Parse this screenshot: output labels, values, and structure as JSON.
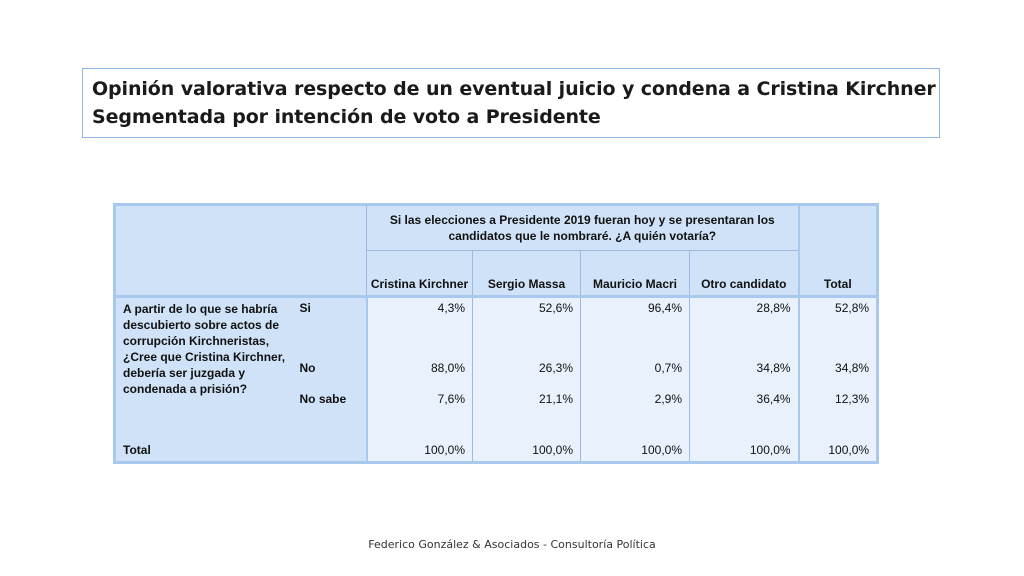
{
  "title": {
    "line1": "Opinión valorativa respecto de un eventual juicio y condena a Cristina Kirchner",
    "line2": "Segmentada por intención de voto a Presidente"
  },
  "table": {
    "group_header": "Si las elecciones a Presidente 2019 fueran hoy y se presentaran los candidatos que le nombraré. ¿A quién votaría?",
    "columns": [
      "Cristina Kirchner",
      "Sergio Massa",
      "Mauricio Macri",
      "Otro candidato"
    ],
    "total_header": "Total",
    "question": "A partir de lo que se habría descubierto sobre actos de corrupción Kirchneristas, ¿Cree que Cristina Kirchner, debería ser juzgada y condenada a prisión?",
    "rows": [
      {
        "label": "Si",
        "values": [
          "4,3%",
          "52,6%",
          "96,4%",
          "28,8%",
          "52,8%"
        ]
      },
      {
        "label": "No",
        "values": [
          "88,0%",
          "26,3%",
          "0,7%",
          "34,8%",
          "34,8%"
        ]
      },
      {
        "label": "No sabe",
        "values": [
          "7,6%",
          "21,1%",
          "2,9%",
          "36,4%",
          "12,3%"
        ]
      }
    ],
    "total_row": {
      "label": "Total",
      "values": [
        "100,0%",
        "100,0%",
        "100,0%",
        "100,0%",
        "100,0%"
      ]
    }
  },
  "footer": "Federico González & Asociados - Consultoría Política",
  "colors": {
    "header_bg": "#cfe2f8",
    "body_bg": "#e8f1fc",
    "border": "#a9c8ee",
    "title_border": "#8eb4e3"
  }
}
